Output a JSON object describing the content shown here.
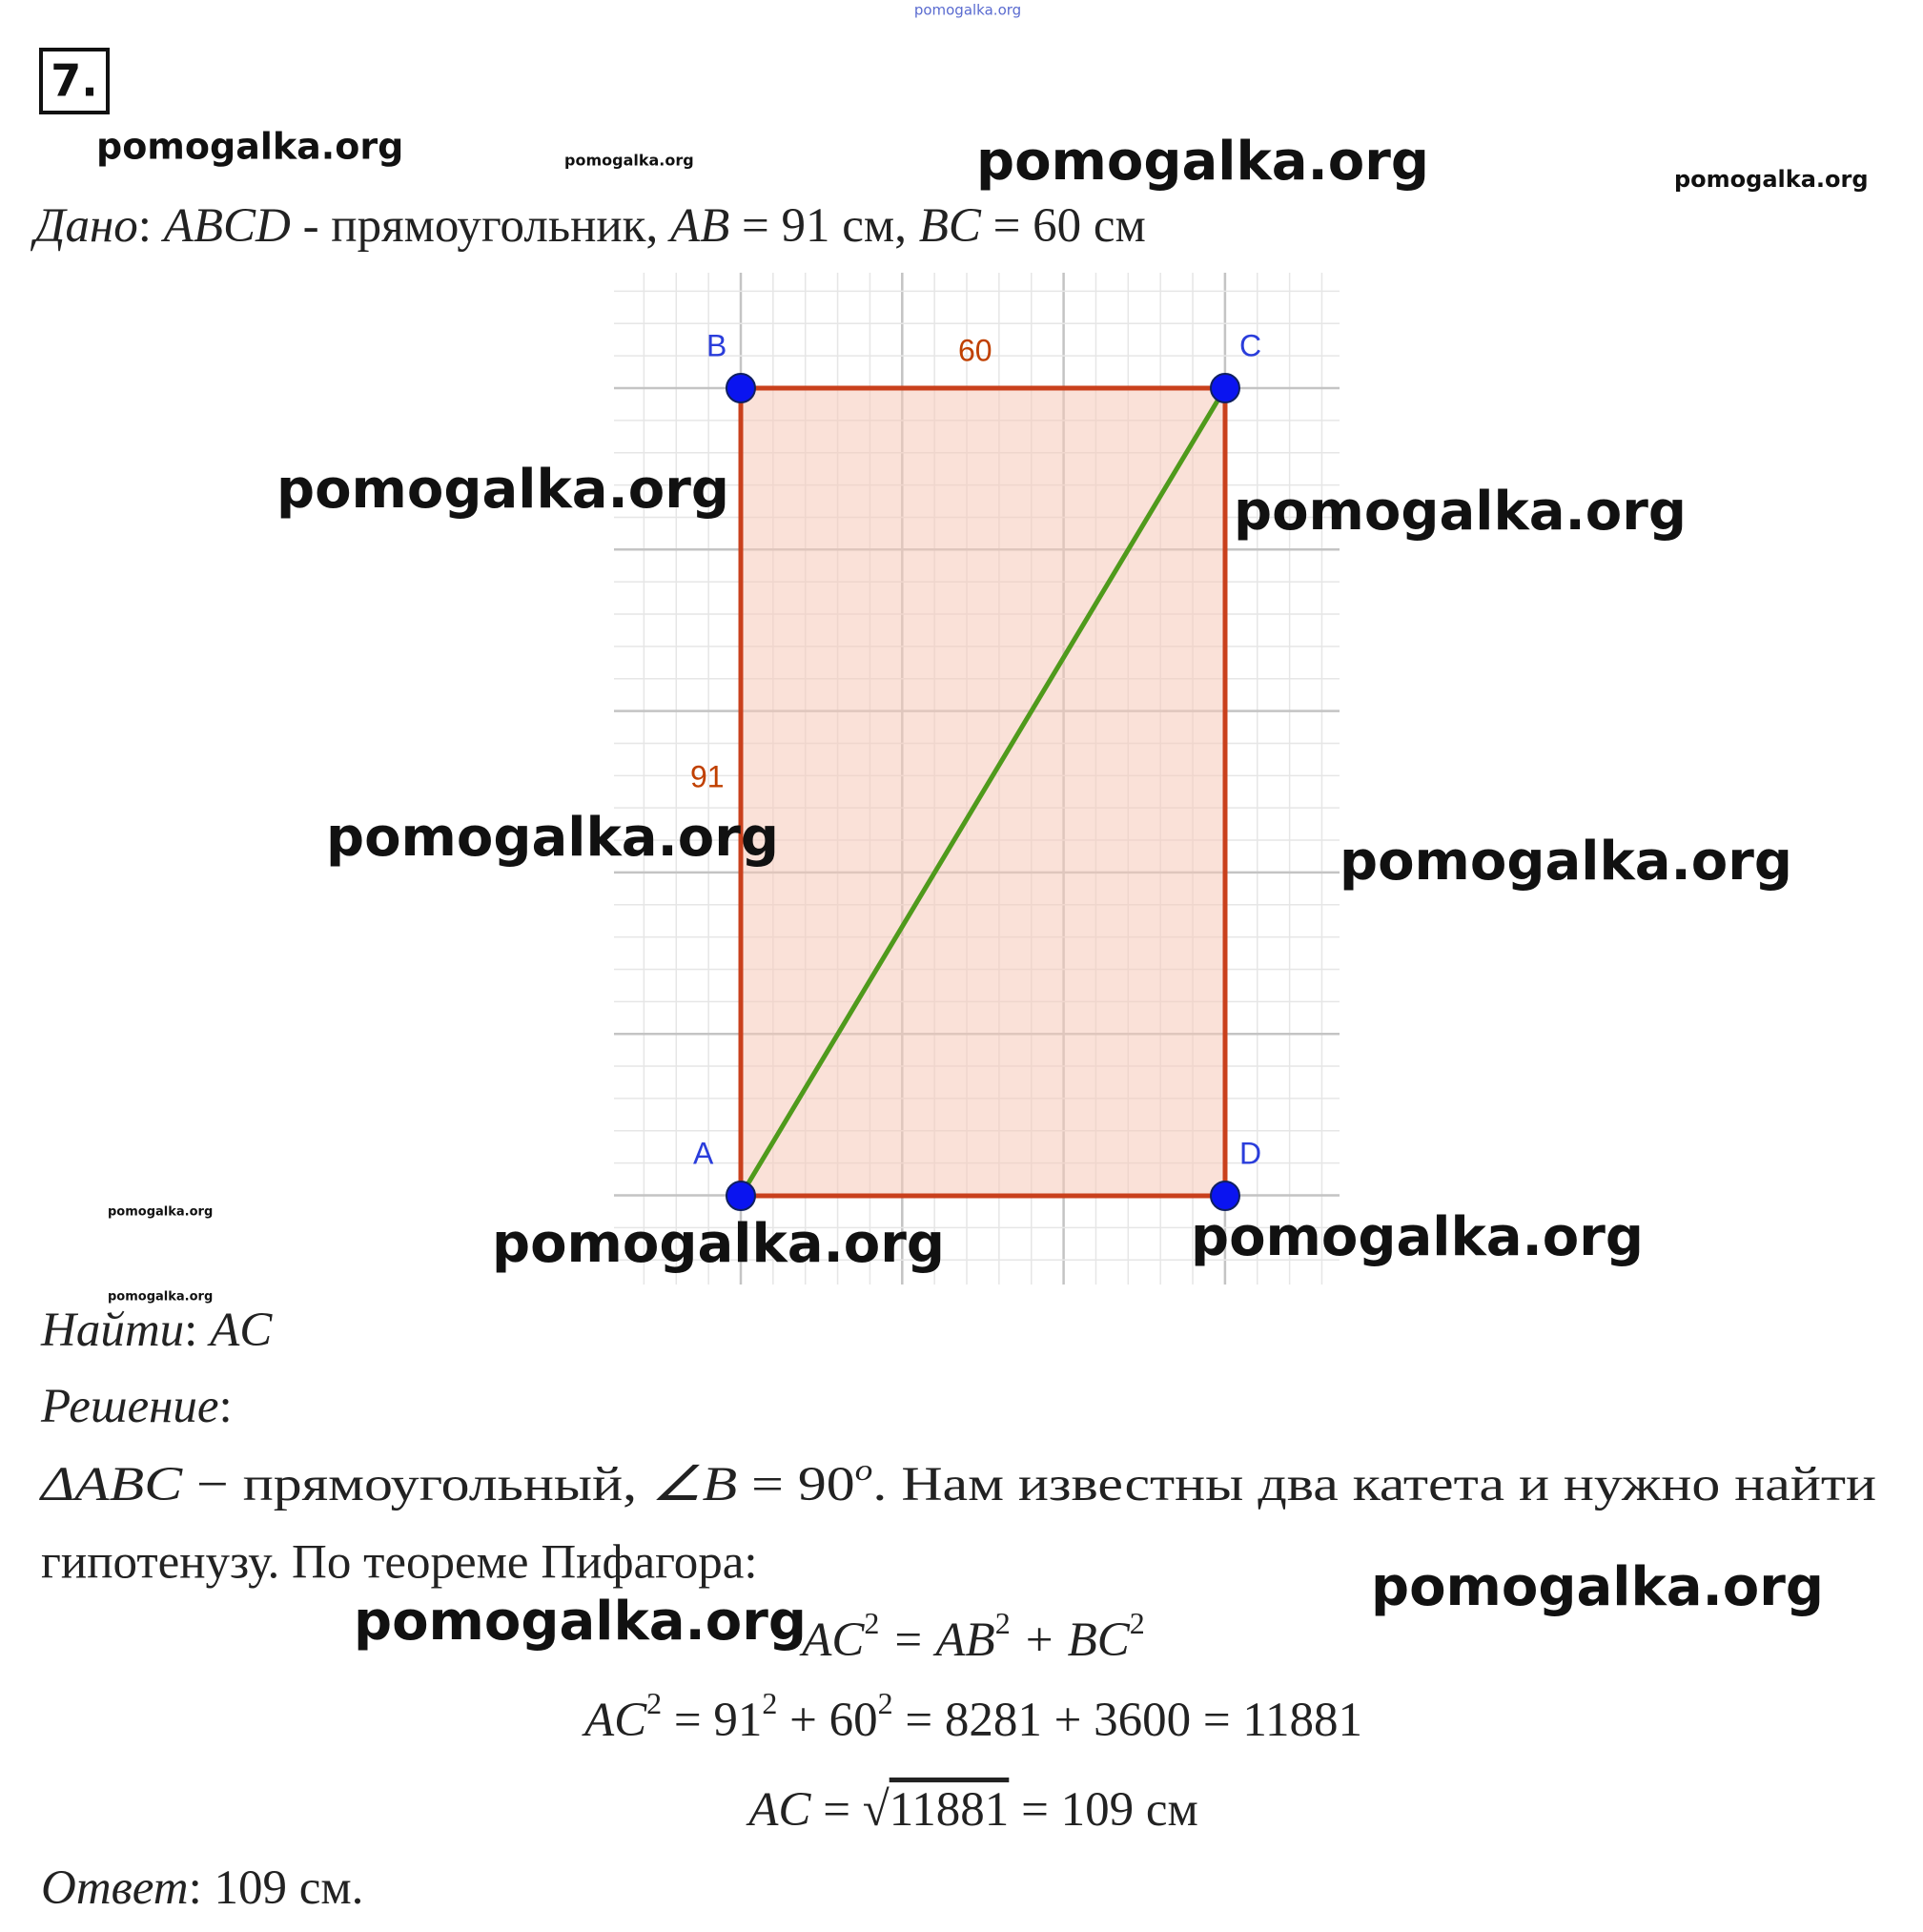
{
  "header": {
    "number": "7.",
    "site": "pomogalka.org"
  },
  "watermarks": [
    "pomogalka.org",
    "pomogalka.org",
    "pomogalka.org",
    "pomogalka.org",
    "pomogalka.org",
    "pomogalka.org",
    "pomogalka.org",
    "pomogalka.org",
    "pomogalka.org",
    "pomogalka.org",
    "pomogalka.org",
    "pomogalka.org",
    "pomogalka.org",
    "pomogalka.org"
  ],
  "given": [
    "Дано",
    ": ",
    "ABCD",
    " - прямоугольник, ",
    "AB",
    " = 91 см,  ",
    "BC",
    " = 60 см"
  ],
  "diagram": {
    "points": [
      "A",
      "B",
      "C",
      "D"
    ],
    "side_ab": "91",
    "side_bc": "60"
  },
  "find": [
    "Найти",
    ": ",
    "AC"
  ],
  "heading": [
    "Решение",
    ":"
  ],
  "line1": [
    "ΔABC",
    " − прямоугольный, ",
    "∠B",
    " = 90",
    "o",
    ". Нам известны два катета и нужно найти"
  ],
  "line2": "гипотенузу. По теореме Пифагора:",
  "eq1": [
    "AC",
    "2",
    " = AB",
    "2",
    " + BC",
    "2"
  ],
  "eq2": [
    "AC",
    "2",
    " = 91",
    "2",
    " + 60",
    "2",
    " = 8281 + 3600 = 11881"
  ],
  "eq3": [
    "AC",
    " = ",
    "√",
    "11881",
    " = 109 см"
  ],
  "answer": [
    "Ответ",
    ": ",
    "109 см."
  ]
}
